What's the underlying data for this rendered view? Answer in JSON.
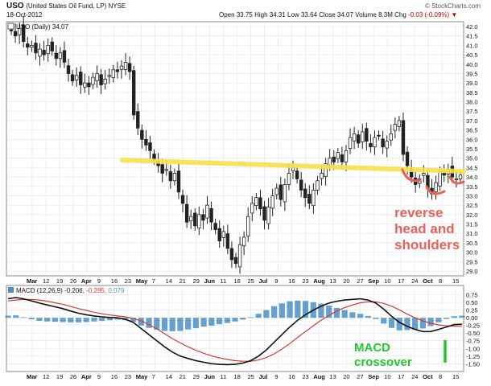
{
  "header": {
    "symbol": "USO",
    "name": "(United States Oil Fund, LP) NYSE",
    "date": "18-Oct-2012",
    "copyright": "© StockCharts.com",
    "open_label": "Open",
    "open": "33.75",
    "high_label": "High",
    "high": "34.31",
    "low_label": "Low",
    "low": "33.64",
    "close_label": "Close",
    "close": "34.07",
    "volume_label": "Volume",
    "volume": "8.3M",
    "chg_label": "Chg",
    "chg": "-0.03 (-0.09%)"
  },
  "chart_data": [
    {
      "type": "candlestick",
      "legend": "USO (Daily) 34.07",
      "ylim": [
        29.0,
        42.0
      ],
      "yticks": [
        "42.0",
        "41.5",
        "41.0",
        "40.5",
        "40.0",
        "39.5",
        "39.0",
        "38.5",
        "38.0",
        "37.5",
        "37.0",
        "36.5",
        "36.0",
        "35.5",
        "35.0",
        "34.5",
        "34.0",
        "33.5",
        "33.0",
        "32.5",
        "32.0",
        "31.5",
        "31.0",
        "30.5",
        "30.0",
        "29.5",
        "29.0"
      ],
      "xticks": [
        "Mar",
        "12",
        "19",
        "26",
        "Apr",
        "9",
        "16",
        "23",
        "May",
        "7",
        "14",
        "21",
        "29",
        "Jun",
        "11",
        "18",
        "25",
        "Jul",
        "9",
        "16",
        "23",
        "Aug",
        "13",
        "20",
        "27",
        "Sep",
        "10",
        "17",
        "24",
        "Oct",
        "8",
        "15"
      ],
      "close_path": [
        41.8,
        41.5,
        41.9,
        41.2,
        40.9,
        41.0,
        40.6,
        40.8,
        40.5,
        41.0,
        40.7,
        40.3,
        40.6,
        40.1,
        39.5,
        39.1,
        39.4,
        38.9,
        39.0,
        38.8,
        39.3,
        39.5,
        38.9,
        39.2,
        39.4,
        39.7,
        39.6,
        39.9,
        40.1,
        39.6,
        37.3,
        36.6,
        36.0,
        35.7,
        35.4,
        34.9,
        34.6,
        34.2,
        34.4,
        33.8,
        34.2,
        33.2,
        32.6,
        31.6,
        31.9,
        31.4,
        32.0,
        31.7,
        32.5,
        31.6,
        31.2,
        30.6,
        31.1,
        30.2,
        29.6,
        29.4,
        30.4,
        30.8,
        31.9,
        32.6,
        32.9,
        32.3,
        31.7,
        32.4,
        33.0,
        33.4,
        32.8,
        33.6,
        34.2,
        34.5,
        33.9,
        33.3,
        32.9,
        32.6,
        33.3,
        33.8,
        34.2,
        34.7,
        35.0,
        34.8,
        35.3,
        34.8,
        35.4,
        36.1,
        36.3,
        35.8,
        36.4,
        35.9,
        35.6,
        36.1,
        36.2,
        35.6,
        35.9,
        36.3,
        36.8,
        37.0,
        35.2,
        34.6,
        34.0,
        33.6,
        33.9,
        34.2,
        33.4,
        33.1,
        33.7,
        34.3,
        34.1,
        34.4,
        34.0,
        33.9,
        34.1
      ],
      "annotations": {
        "neckline": [
          34.9,
          34.3
        ],
        "pattern_label": [
          "reverse",
          "head and",
          "shoulders"
        ]
      }
    },
    {
      "type": "line",
      "legend_prefix": "MACD (12,26,9)",
      "legend_macd": "-0.206,",
      "legend_signal": "-0.285,",
      "legend_hist": "0.079",
      "ylim": [
        -1.65,
        0.95
      ],
      "yticks": [
        "0.75",
        "0.50",
        "0.25",
        "0.00",
        "-0.25",
        "-0.50",
        "-0.75",
        "-1.00",
        "-1.25",
        "-1.50"
      ],
      "macd": [
        0.62,
        0.66,
        0.62,
        0.55,
        0.48,
        0.42,
        0.36,
        0.3,
        0.22,
        0.15,
        0.1,
        0.06,
        0.03,
        0.01,
        0.0,
        -0.05,
        -0.15,
        -0.35,
        -0.55,
        -0.75,
        -0.95,
        -1.12,
        -1.25,
        -1.33,
        -1.4,
        -1.45,
        -1.5,
        -1.52,
        -1.53,
        -1.52,
        -1.48,
        -1.4,
        -1.25,
        -1.05,
        -0.8,
        -0.55,
        -0.3,
        -0.08,
        0.1,
        0.25,
        0.38,
        0.48,
        0.54,
        0.58,
        0.6,
        0.62,
        0.58,
        0.48,
        0.28,
        0.05,
        -0.15,
        -0.28,
        -0.38,
        -0.45,
        -0.45,
        -0.38,
        -0.3,
        -0.22,
        -0.21
      ],
      "signal": [
        0.55,
        0.58,
        0.6,
        0.6,
        0.58,
        0.54,
        0.49,
        0.44,
        0.37,
        0.3,
        0.24,
        0.18,
        0.13,
        0.09,
        0.06,
        0.03,
        -0.02,
        -0.1,
        -0.22,
        -0.36,
        -0.52,
        -0.68,
        -0.82,
        -0.95,
        -1.06,
        -1.16,
        -1.24,
        -1.31,
        -1.36,
        -1.4,
        -1.42,
        -1.42,
        -1.38,
        -1.3,
        -1.18,
        -1.02,
        -0.84,
        -0.64,
        -0.45,
        -0.26,
        -0.08,
        0.08,
        0.22,
        0.33,
        0.42,
        0.49,
        0.52,
        0.52,
        0.47,
        0.38,
        0.26,
        0.12,
        0.0,
        -0.1,
        -0.18,
        -0.23,
        -0.26,
        -0.27,
        -0.28
      ],
      "annotations": {
        "crossover_label": [
          "MACD",
          "crossover"
        ]
      }
    }
  ],
  "colors": {
    "candle": "#222222",
    "neckline": "#f7e04a",
    "pattern": "#e8625a",
    "macd": "#111111",
    "signal": "#d43a2f",
    "hist": "#4a8fc7",
    "crossover": "#22c92a",
    "grid": "#dde4ea"
  }
}
